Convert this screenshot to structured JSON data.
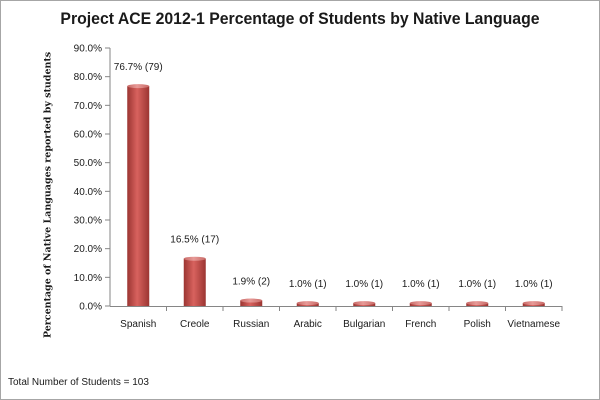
{
  "chart_data": {
    "type": "bar",
    "title": "Project ACE 2012-1 Percentage of Students by Native Language",
    "xlabel": "",
    "ylabel": "Percentage of Native Languages reported by students",
    "ylim": [
      0,
      90
    ],
    "y_tick_labels": [
      "0.0%",
      "10.0%",
      "20.0%",
      "30.0%",
      "40.0%",
      "50.0%",
      "60.0%",
      "70.0%",
      "80.0%",
      "90.0%"
    ],
    "categories": [
      "Spanish",
      "Creole",
      "Russian",
      "Arabic",
      "Bulgarian",
      "French",
      "Polish",
      "Vietnamese"
    ],
    "values": [
      76.7,
      16.5,
      1.9,
      1.0,
      1.0,
      1.0,
      1.0,
      1.0
    ],
    "data_labels": [
      "76.7% (79)",
      "16.5% (17)",
      "1.9% (2)",
      "1.0% (1)",
      "1.0% (1)",
      "1.0% (1)",
      "1.0% (1)",
      "1.0% (1)"
    ],
    "bar_color": "#c0504d",
    "grid": false,
    "legend": "none"
  },
  "footnote": "Total Number  of  Students = 103"
}
